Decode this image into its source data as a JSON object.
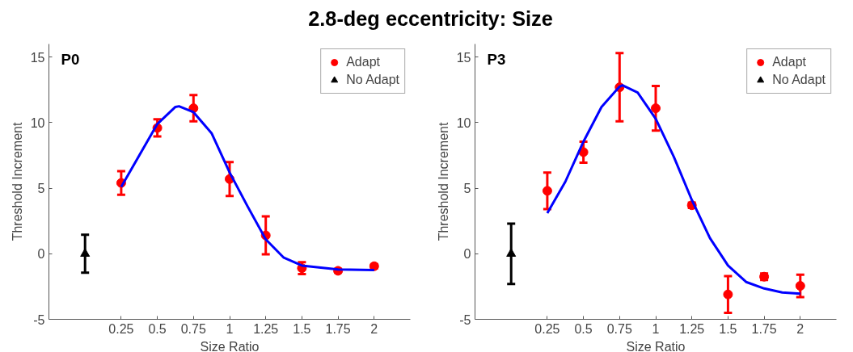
{
  "chart_data": [
    {
      "type": "scatter",
      "title": "P0",
      "annotations": [
        "2.8-deg eccentricity: Size"
      ],
      "xlabel": "Size Ratio",
      "ylabel": "Threshold Increment",
      "xlim": [
        -0.25,
        2.25
      ],
      "xticks": [
        0.25,
        0.5,
        0.75,
        1,
        1.25,
        1.5,
        1.75,
        2
      ],
      "ylim": [
        -5,
        16
      ],
      "yticks": [
        -5,
        0,
        5,
        10,
        15
      ],
      "grid": false,
      "legend": "top right",
      "series": [
        {
          "name": "Adapt",
          "marker": "circle",
          "color": "#ff0000",
          "x": [
            0.25,
            0.5,
            0.75,
            1,
            1.25,
            1.5,
            1.75,
            2
          ],
          "values": [
            5.4,
            9.6,
            11.1,
            5.7,
            1.4,
            -1.1,
            -1.3,
            -0.95
          ],
          "errors": [
            0.9,
            0.65,
            1.0,
            1.3,
            1.45,
            0.45,
            0.15,
            0.15
          ]
        },
        {
          "name": "No Adapt",
          "marker": "triangle",
          "color": "#000000",
          "x": [
            0
          ],
          "values": [
            0
          ],
          "errors": [
            1.45
          ]
        },
        {
          "type": "line",
          "color": "#0000ff",
          "x": [
            0.25,
            0.375,
            0.5,
            0.625,
            0.65,
            0.75,
            0.875,
            1,
            1.125,
            1.25,
            1.375,
            1.5,
            1.75,
            2
          ],
          "values": [
            5.1,
            7.5,
            9.9,
            11.2,
            11.25,
            10.8,
            9.2,
            6.2,
            3.6,
            1.1,
            -0.3,
            -0.9,
            -1.2,
            -1.25
          ]
        }
      ]
    },
    {
      "type": "scatter",
      "title": "P3",
      "xlabel": "Size Ratio",
      "ylabel": "Threshold Increment",
      "xlim": [
        -0.25,
        2.25
      ],
      "xticks": [
        0.25,
        0.5,
        0.75,
        1,
        1.25,
        1.5,
        1.75,
        2
      ],
      "ylim": [
        -5,
        16
      ],
      "yticks": [
        -5,
        0,
        5,
        10,
        15
      ],
      "grid": false,
      "legend": "top right",
      "series": [
        {
          "name": "Adapt",
          "marker": "circle",
          "color": "#ff0000",
          "x": [
            0.25,
            0.5,
            0.75,
            1,
            1.25,
            1.5,
            1.75,
            2
          ],
          "values": [
            4.8,
            7.75,
            12.7,
            11.1,
            3.7,
            -3.1,
            -1.75,
            -2.45
          ],
          "errors": [
            1.4,
            0.8,
            2.6,
            1.7,
            0.2,
            1.4,
            0.25,
            0.85
          ]
        },
        {
          "name": "No Adapt",
          "marker": "triangle",
          "color": "#000000",
          "x": [
            0
          ],
          "values": [
            0
          ],
          "errors": [
            2.3
          ]
        },
        {
          "type": "line",
          "color": "#0000ff",
          "x": [
            0.25,
            0.375,
            0.5,
            0.625,
            0.75,
            0.77,
            0.875,
            1,
            1.125,
            1.25,
            1.375,
            1.5,
            1.625,
            1.75,
            1.875,
            2
          ],
          "values": [
            3.1,
            5.5,
            8.55,
            11.2,
            12.75,
            12.85,
            12.3,
            10.3,
            7.4,
            4.1,
            1.2,
            -0.9,
            -2.15,
            -2.65,
            -2.95,
            -3.05
          ]
        }
      ]
    }
  ]
}
